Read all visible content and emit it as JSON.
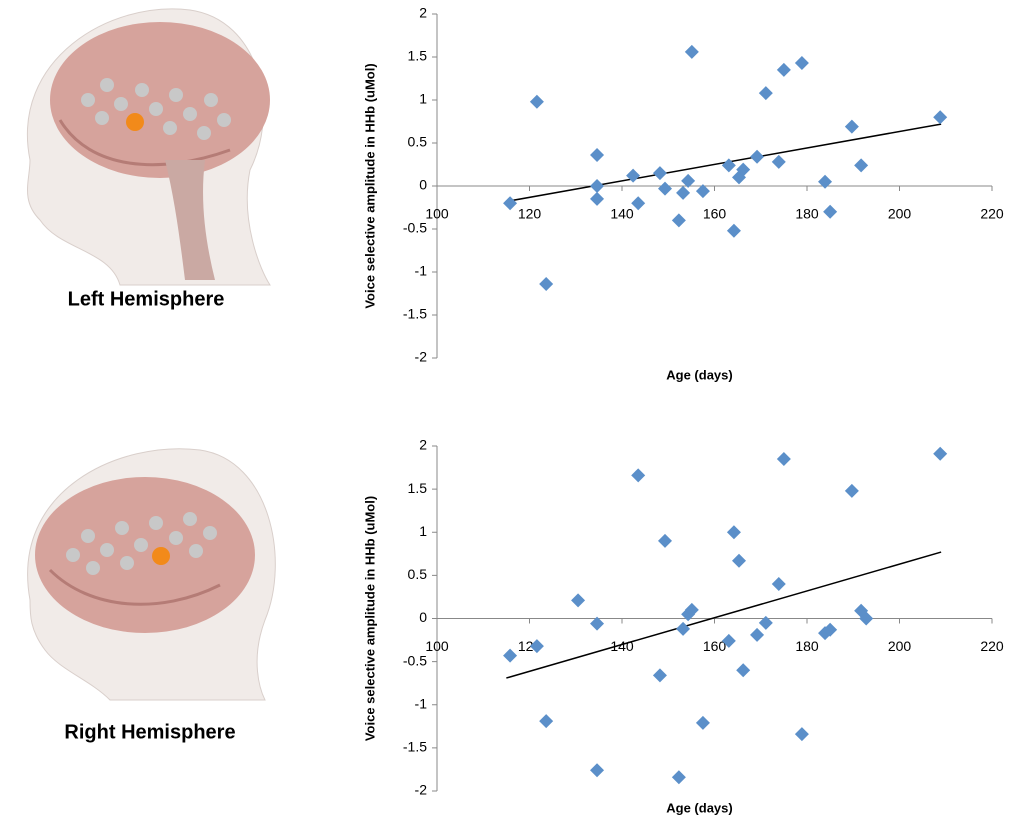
{
  "chart_data": [
    {
      "type": "scatter",
      "label": "Left Hemisphere",
      "x_label": "Age (days)",
      "y_label": "Voice selective amplitude in HHb (uMol)",
      "color": "#5b8fc9",
      "x": [
        115.8,
        121.6,
        123.6,
        134.6,
        134.6,
        134.6,
        142.4,
        143.5,
        148.2,
        149.3,
        152.3,
        153.2,
        154.3,
        155.1,
        157.5,
        163.1,
        164.2,
        165.3,
        166.2,
        169.2,
        171.1,
        173.9,
        175.0,
        178.9,
        183.9,
        185.0,
        189.7,
        191.7,
        208.8
      ],
      "values": [
        -0.2,
        0.98,
        -1.14,
        0.36,
        0,
        -0.15,
        0.12,
        -0.2,
        0.15,
        -0.03,
        -0.4,
        -0.08,
        0.06,
        1.56,
        -0.06,
        0.24,
        -0.52,
        0.1,
        0.19,
        0.34,
        1.08,
        0.28,
        1.35,
        1.43,
        0.05,
        -0.3,
        0.69,
        0.24,
        0.8
      ],
      "trendline": {
        "x": [
          115,
          209
        ],
        "y": [
          -0.18,
          0.72
        ]
      },
      "xlim": [
        100,
        220
      ],
      "xticks": [
        100,
        120,
        140,
        160,
        180,
        200,
        220
      ],
      "ylim": [
        -2,
        2
      ],
      "yticks": [
        -2,
        -1.5,
        -1,
        -0.5,
        0,
        0.5,
        1,
        1.5,
        2
      ]
    },
    {
      "type": "scatter",
      "label": "Right Hemisphere",
      "x_label": "Age (days)",
      "y_label": "Voice selective amplitude in HHb (uMol)",
      "color": "#5b8fc9",
      "x": [
        115.8,
        121.6,
        123.6,
        130.5,
        134.6,
        134.6,
        143.5,
        148.2,
        149.3,
        152.3,
        153.2,
        154.3,
        155.1,
        157.5,
        163.1,
        164.2,
        165.3,
        166.2,
        169.2,
        171.1,
        173.9,
        175.0,
        178.9,
        183.9,
        185.0,
        189.7,
        191.7,
        192.8,
        208.8
      ],
      "values": [
        -0.43,
        -0.32,
        -1.19,
        0.21,
        -0.06,
        -1.76,
        1.66,
        -0.66,
        0.9,
        -1.84,
        -0.12,
        0.05,
        0.1,
        -1.21,
        -0.26,
        1.0,
        0.67,
        -0.6,
        -0.19,
        -0.05,
        0.4,
        1.85,
        -1.34,
        -0.17,
        -0.13,
        1.48,
        0.09,
        0,
        1.91
      ],
      "trendline": {
        "x": [
          115,
          209
        ],
        "y": [
          -0.69,
          0.77
        ]
      },
      "xlim": [
        100,
        220
      ],
      "xticks": [
        100,
        120,
        140,
        160,
        180,
        200,
        220
      ],
      "ylim": [
        -2,
        2
      ],
      "yticks": [
        -2,
        -1.5,
        -1,
        -0.5,
        0,
        0.5,
        1,
        1.5,
        2
      ]
    }
  ]
}
